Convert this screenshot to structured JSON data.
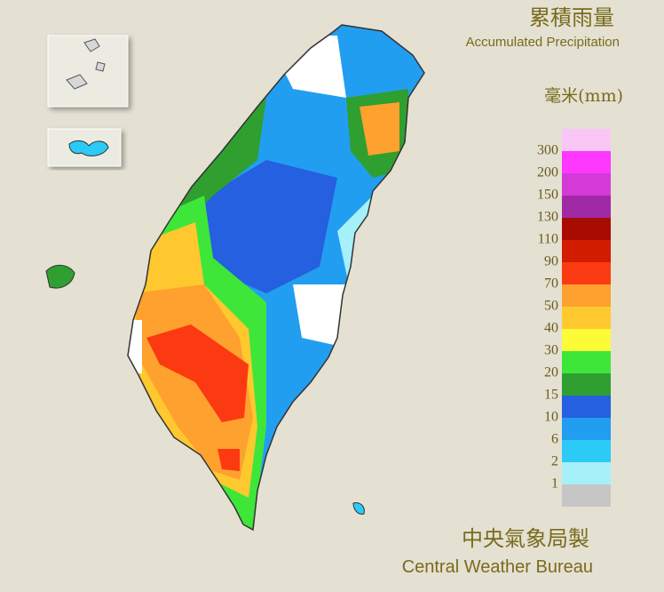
{
  "header": {
    "title": "累積雨量",
    "subtitle": "Accumulated Precipitation"
  },
  "legend": {
    "unit": "毫米(mm)",
    "ticks": [
      300,
      200,
      150,
      130,
      110,
      90,
      70,
      50,
      40,
      30,
      20,
      15,
      10,
      6,
      2,
      1
    ],
    "colors": [
      "#f9c6f6",
      "#ff38ff",
      "#d43ad8",
      "#a02aa6",
      "#a80c00",
      "#d21c00",
      "#fb3a12",
      "#ffa12e",
      "#ffc82e",
      "#fbfb38",
      "#3ee63a",
      "#2f9f2f",
      "#2460e0",
      "#229ef0",
      "#2ccaf6",
      "#a6f0fa",
      "#c6c6c6"
    ]
  },
  "footer": {
    "agency": "中央氣象局製",
    "agency_en": "Central Weather Bureau"
  }
}
